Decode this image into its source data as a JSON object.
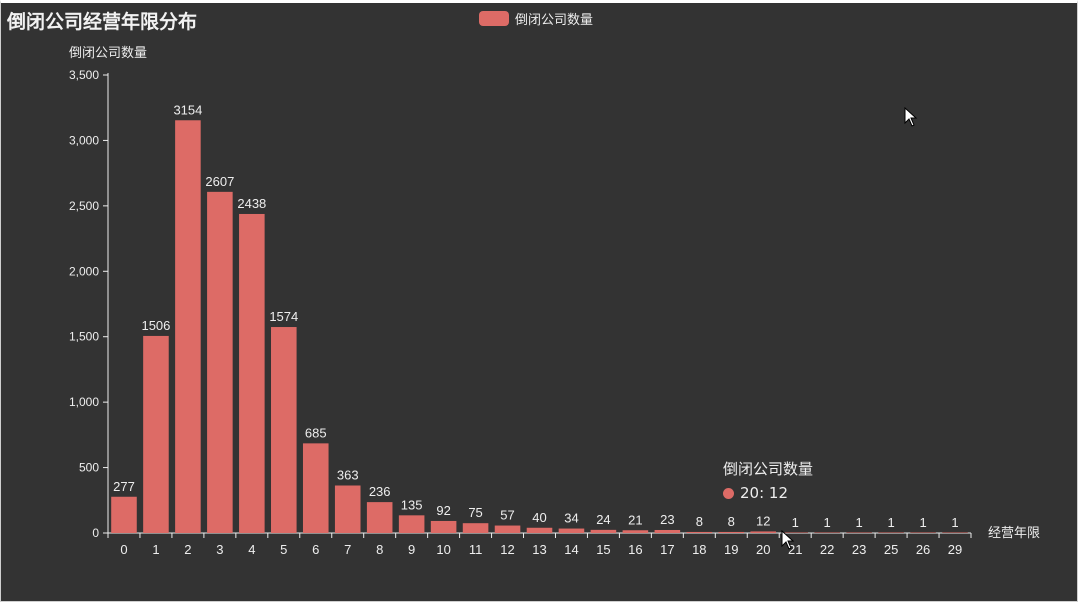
{
  "title": "倒闭公司经营年限分布",
  "legend": {
    "label": "倒闭公司数量"
  },
  "colors": {
    "bar": "#dd6b66",
    "background": "#333333",
    "axis": "#eeeeee"
  },
  "tooltip": {
    "series": "倒闭公司数量",
    "value_text": "20: 12"
  },
  "chart_data": {
    "type": "bar",
    "title": "倒闭公司经营年限分布",
    "xlabel": "经营年限",
    "ylabel": "倒闭公司数量",
    "categories": [
      "0",
      "1",
      "2",
      "3",
      "4",
      "5",
      "6",
      "7",
      "8",
      "9",
      "10",
      "11",
      "12",
      "13",
      "14",
      "15",
      "16",
      "17",
      "18",
      "19",
      "20",
      "21",
      "22",
      "23",
      "25",
      "26",
      "29"
    ],
    "series": [
      {
        "name": "倒闭公司数量",
        "values": [
          277,
          1506,
          3154,
          2607,
          2438,
          1574,
          685,
          363,
          236,
          135,
          92,
          75,
          57,
          40,
          34,
          24,
          21,
          23,
          8,
          8,
          12,
          1,
          1,
          1,
          1,
          1,
          1
        ]
      }
    ],
    "ylim": [
      0,
      3500
    ],
    "yticks": [
      0,
      500,
      1000,
      1500,
      2000,
      2500,
      3000,
      3500
    ],
    "ytick_labels": [
      "0",
      "500",
      "1,000",
      "1,500",
      "2,000",
      "2,500",
      "3,000",
      "3,500"
    ],
    "grid": false,
    "legend_position": "top-center"
  }
}
